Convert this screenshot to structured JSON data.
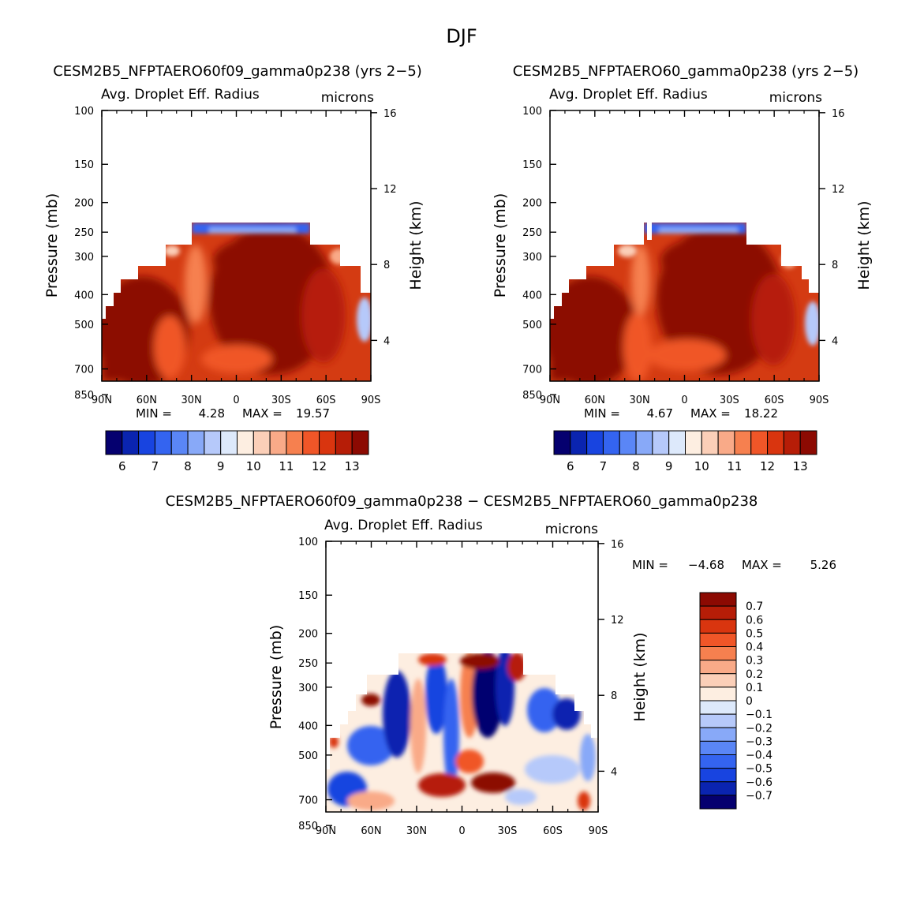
{
  "page_title": "DJF",
  "chart_data": [
    {
      "type": "heatmap",
      "id": "p1",
      "title": "CESM2B5_NFPTAERO60f09_gamma0p238 (yrs 2−5)",
      "subtitle_left": "Avg. Droplet Eff. Radius",
      "subtitle_right": "microns",
      "xlabel": "",
      "ylabel": "Pressure (mb)",
      "ylabel_right": "Height (km)",
      "x_ticks": [
        "90N",
        "60N",
        "30N",
        "0",
        "30S",
        "60S",
        "90S"
      ],
      "y_ticks": [
        100,
        150,
        200,
        250,
        300,
        400,
        500,
        700,
        850
      ],
      "y_right_ticks": [
        16,
        12,
        8,
        4
      ],
      "stats": {
        "min_label": "MIN =",
        "min": "4.28",
        "max_label": "MAX =",
        "max": "19.57"
      },
      "colorbar": {
        "orientation": "horizontal",
        "labels": [
          "6",
          "7",
          "8",
          "9",
          "10",
          "11",
          "12",
          "13"
        ],
        "colors": [
          "#05006f",
          "#0a24b0",
          "#1844e0",
          "#3464f0",
          "#5a86f6",
          "#88a9f8",
          "#b6c9fa",
          "#dde9fb",
          "#fdeee1",
          "#fbcfb8",
          "#f9aa88",
          "#f6804f",
          "#f05628",
          "#d9350f",
          "#b61d07",
          "#8c0a02"
        ]
      }
    },
    {
      "type": "heatmap",
      "id": "p2",
      "title": "CESM2B5_NFPTAERO60_gamma0p238 (yrs 2−5)",
      "subtitle_left": "Avg. Droplet Eff. Radius",
      "subtitle_right": "microns",
      "xlabel": "",
      "ylabel": "Pressure (mb)",
      "ylabel_right": "Height (km)",
      "x_ticks": [
        "90N",
        "60N",
        "30N",
        "0",
        "30S",
        "60S",
        "90S"
      ],
      "y_ticks": [
        100,
        150,
        200,
        250,
        300,
        400,
        500,
        700,
        850
      ],
      "y_right_ticks": [
        16,
        12,
        8,
        4
      ],
      "stats": {
        "min_label": "MIN =",
        "min": "4.67",
        "max_label": "MAX =",
        "max": "18.22"
      },
      "colorbar": {
        "orientation": "horizontal",
        "labels": [
          "6",
          "7",
          "8",
          "9",
          "10",
          "11",
          "12",
          "13"
        ],
        "colors": [
          "#05006f",
          "#0a24b0",
          "#1844e0",
          "#3464f0",
          "#5a86f6",
          "#88a9f8",
          "#b6c9fa",
          "#dde9fb",
          "#fdeee1",
          "#fbcfb8",
          "#f9aa88",
          "#f6804f",
          "#f05628",
          "#d9350f",
          "#b61d07",
          "#8c0a02"
        ]
      }
    },
    {
      "type": "heatmap",
      "id": "p3",
      "title": "CESM2B5_NFPTAERO60f09_gamma0p238 − CESM2B5_NFPTAERO60_gamma0p238",
      "subtitle_left": "Avg. Droplet Eff. Radius",
      "subtitle_right": "microns",
      "xlabel": "",
      "ylabel": "Pressure (mb)",
      "ylabel_right": "Height (km)",
      "x_ticks": [
        "90N",
        "60N",
        "30N",
        "0",
        "30S",
        "60S",
        "90S"
      ],
      "y_ticks": [
        100,
        150,
        200,
        250,
        300,
        400,
        500,
        700,
        850
      ],
      "y_right_ticks": [
        16,
        12,
        8,
        4
      ],
      "stats": {
        "min_label": "MIN =",
        "min": "−4.68",
        "max_label": "MAX =",
        "max": "5.26"
      },
      "colorbar": {
        "orientation": "vertical",
        "labels": [
          "0.7",
          "0.6",
          "0.5",
          "0.4",
          "0.3",
          "0.2",
          "0.1",
          "0",
          "−0.1",
          "−0.2",
          "−0.3",
          "−0.4",
          "−0.5",
          "−0.6",
          "−0.7"
        ],
        "colors": [
          "#8c0a02",
          "#b61d07",
          "#d9350f",
          "#f05628",
          "#f6804f",
          "#f9aa88",
          "#fbcfb8",
          "#fdeee1",
          "#dde9fb",
          "#b6c9fa",
          "#88a9f8",
          "#5a86f6",
          "#3464f0",
          "#1844e0",
          "#0a24b0",
          "#05006f"
        ]
      }
    }
  ]
}
